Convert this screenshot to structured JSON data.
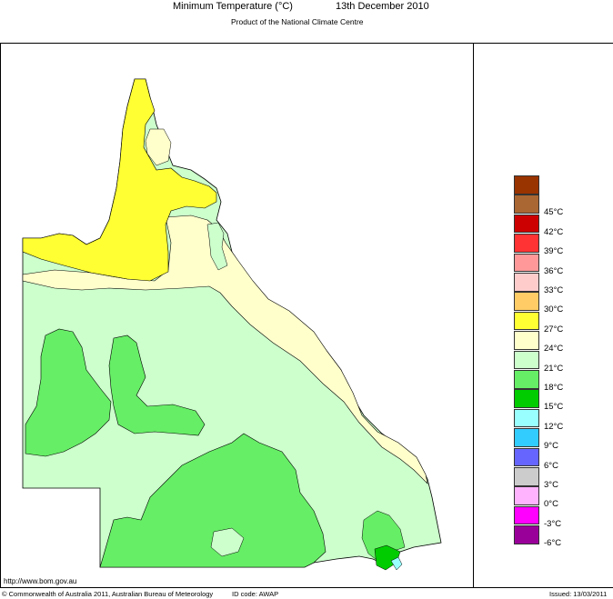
{
  "title": {
    "main": "Minimum Temperature (°C)",
    "date": "13th December 2010",
    "subtitle": "Product of the National Climate Centre"
  },
  "legend": [
    {
      "label": "",
      "color": "#993300"
    },
    {
      "label": "45°C",
      "color": "#aa6633"
    },
    {
      "label": "42°C",
      "color": "#cc0000"
    },
    {
      "label": "39°C",
      "color": "#ff3333"
    },
    {
      "label": "36°C",
      "color": "#ff9999"
    },
    {
      "label": "33°C",
      "color": "#ffcccc"
    },
    {
      "label": "30°C",
      "color": "#ffcc66"
    },
    {
      "label": "27°C",
      "color": "#ffff33"
    },
    {
      "label": "24°C",
      "color": "#ffffcc"
    },
    {
      "label": "21°C",
      "color": "#ccffcc"
    },
    {
      "label": "18°C",
      "color": "#66ee66"
    },
    {
      "label": "15°C",
      "color": "#00cc00"
    },
    {
      "label": "12°C",
      "color": "#99ffff"
    },
    {
      "label": "9°C",
      "color": "#33ccff"
    },
    {
      "label": "6°C",
      "color": "#6666ff"
    },
    {
      "label": "3°C",
      "color": "#cccccc"
    },
    {
      "label": "0°C",
      "color": "#ffb3ff"
    },
    {
      "label": "-3°C",
      "color": "#ff00ff"
    },
    {
      "label": "-6°C",
      "color": "#990099"
    }
  ],
  "footer": {
    "url": "http://www.bom.gov.au",
    "copyright": "© Commonwealth of Australia 2011, Australian Bureau of Meteorology",
    "id_code": "ID code: AWAP",
    "issued": "Issued: 13/03/2011"
  }
}
